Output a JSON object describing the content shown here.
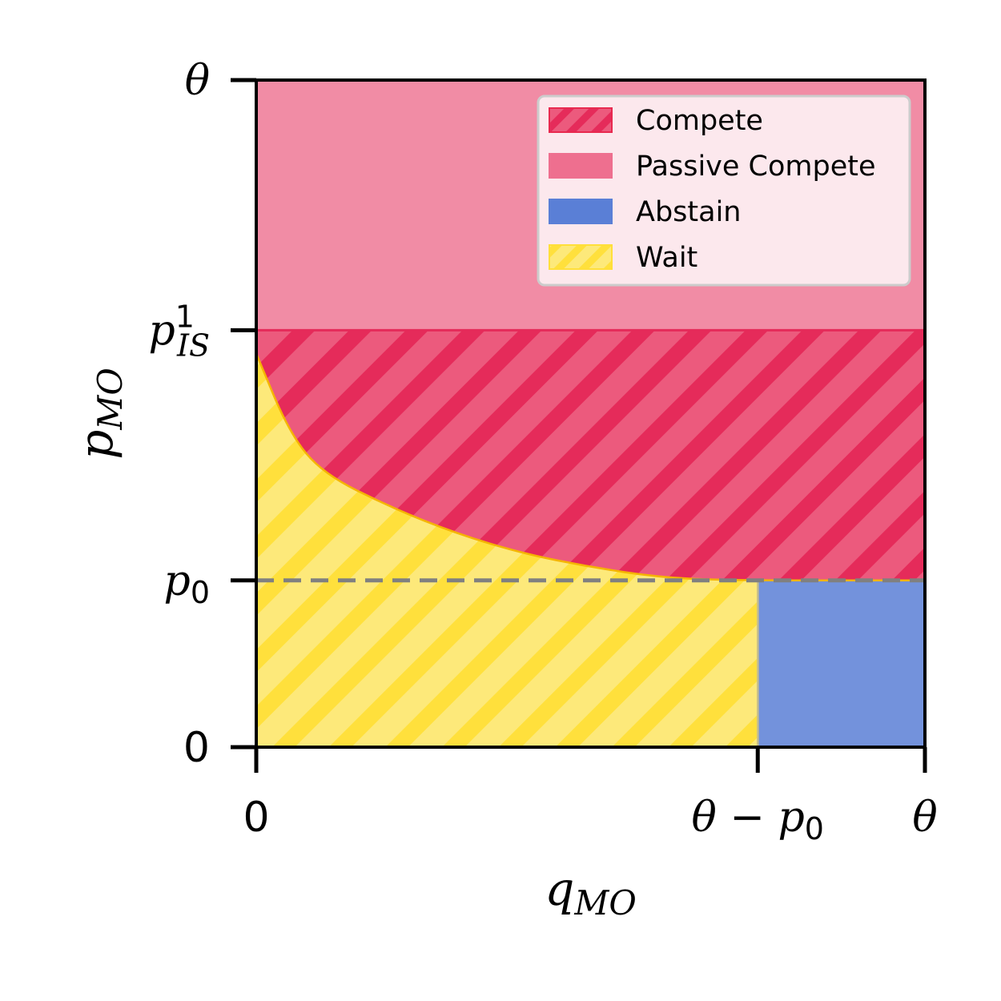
{
  "chart_data": {
    "type": "area",
    "title": "",
    "xlabel": "q_MO",
    "ylabel": "p_MO",
    "xlim": [
      0,
      1
    ],
    "ylim": [
      0,
      1
    ],
    "x_ticks": [
      {
        "value": 0,
        "label": "0"
      },
      {
        "value": 0.75,
        "label": "θ − p₀"
      },
      {
        "value": 1,
        "label": "θ"
      }
    ],
    "y_ticks": [
      {
        "value": 0,
        "label": "0"
      },
      {
        "value": 0.25,
        "label": "p₀"
      },
      {
        "value": 0.625,
        "label": "p¹_IS"
      },
      {
        "value": 1,
        "label": "θ"
      }
    ],
    "regions": [
      {
        "name": "Passive Compete",
        "color": "#ee6f8f",
        "hatch": false,
        "description_polygon": [
          [
            0,
            0.625
          ],
          [
            1,
            0.625
          ],
          [
            1,
            1
          ],
          [
            0,
            1
          ]
        ]
      },
      {
        "name": "Compete",
        "color": "#e8294f",
        "hatch": true,
        "boundary_curve": [
          [
            0,
            0.59
          ],
          [
            0.05,
            0.47
          ],
          [
            0.1,
            0.41
          ],
          [
            0.2,
            0.36
          ],
          [
            0.3,
            0.32
          ],
          [
            0.4,
            0.29
          ],
          [
            0.5,
            0.27
          ],
          [
            0.6,
            0.255
          ],
          [
            0.7,
            0.25
          ],
          [
            1,
            0.25
          ]
        ]
      },
      {
        "name": "Wait",
        "color": "#ffdf3a",
        "hatch": true
      },
      {
        "name": "Abstain",
        "color": "#5a7fd6",
        "hatch": false,
        "rect": [
          [
            0.75,
            0
          ],
          [
            1,
            0.25
          ]
        ]
      }
    ],
    "reference_line": {
      "y": 0.25,
      "style": "dashed",
      "color": "#808080"
    },
    "legend": {
      "placement": "top-right",
      "entries": [
        {
          "label": "Compete",
          "color": "#e8294f",
          "hatch": true
        },
        {
          "label": "Passive Compete",
          "color": "#ee6f8f",
          "hatch": false
        },
        {
          "label": "Abstain",
          "color": "#5a7fd6",
          "hatch": false
        },
        {
          "label": "Wait",
          "color": "#ffdf3a",
          "hatch": true
        }
      ]
    },
    "grid": false
  }
}
